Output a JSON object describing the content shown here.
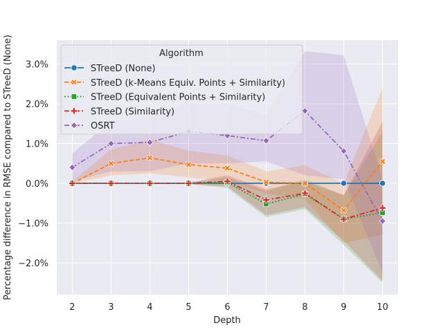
{
  "chart_data": {
    "type": "line",
    "xlabel": "Depth",
    "ylabel": "Percentage difference in RMSE compared to STreeD (None)",
    "x": [
      2,
      3,
      4,
      5,
      6,
      7,
      8,
      9,
      10
    ],
    "xlim": [
      1.6,
      10.4
    ],
    "ylim": [
      -2.8,
      3.6
    ],
    "yticks": [
      -2.0,
      -1.0,
      0.0,
      1.0,
      2.0,
      3.0
    ],
    "ytick_labels": [
      "−2.0%",
      "−1.0%",
      "0.0%",
      "1.0%",
      "2.0%",
      "3.0%"
    ],
    "xtick_labels": [
      "2",
      "3",
      "4",
      "5",
      "6",
      "7",
      "8",
      "9",
      "10"
    ],
    "grid": true,
    "legend_title": "Algorithm",
    "legend_position": "upper-left",
    "series": [
      {
        "name": "STreeD (None)",
        "color": "#1f77b4",
        "marker": "circle",
        "dash": "solid",
        "values": [
          0,
          0,
          0,
          0,
          0,
          0,
          0,
          0,
          0
        ],
        "lower": [
          0,
          0,
          0,
          0,
          0,
          0,
          0,
          0,
          0
        ],
        "upper": [
          0,
          0,
          0,
          0,
          0,
          0,
          0,
          0,
          0
        ]
      },
      {
        "name": "STreeD (k-Means Equiv. Points + Similarity)",
        "color": "#ff7f0e",
        "marker": "x",
        "dash": "dashed",
        "values": [
          0.0,
          0.5,
          0.64,
          0.47,
          0.38,
          0.03,
          0.0,
          -0.68,
          0.55
        ],
        "lower": [
          0.0,
          0.2,
          0.25,
          0.15,
          0.05,
          -0.25,
          -0.4,
          -1.5,
          -1.3
        ],
        "upper": [
          0.05,
          0.85,
          1.1,
          0.82,
          0.7,
          0.3,
          0.45,
          0.0,
          2.4
        ]
      },
      {
        "name": "STreeD (Equivalent Points + Similarity)",
        "color": "#2ca02c",
        "marker": "square",
        "dash": "dotted",
        "values": [
          0.0,
          0.0,
          0.0,
          0.0,
          0.02,
          -0.52,
          -0.27,
          -0.9,
          -0.74
        ],
        "lower": [
          0.0,
          0.0,
          0.0,
          -0.02,
          -0.12,
          -0.85,
          -0.65,
          -1.55,
          -2.5
        ],
        "upper": [
          0.0,
          0.0,
          0.0,
          0.02,
          0.15,
          -0.2,
          0.1,
          -0.3,
          1.3
        ]
      },
      {
        "name": "STreeD (Similarity)",
        "color": "#d62728",
        "marker": "plus",
        "dash": "dashdot",
        "values": [
          0.0,
          0.0,
          0.0,
          0.0,
          0.05,
          -0.42,
          -0.25,
          -0.9,
          -0.62
        ],
        "lower": [
          0.0,
          0.0,
          0.0,
          -0.02,
          -0.08,
          -0.8,
          -0.6,
          -1.45,
          -2.45
        ],
        "upper": [
          0.0,
          0.0,
          0.0,
          0.02,
          0.2,
          -0.15,
          0.05,
          -0.3,
          1.55
        ]
      },
      {
        "name": "OSRT",
        "color": "#9467bd",
        "marker": "diamond",
        "dash": "dashdot",
        "values": [
          0.4,
          1.0,
          1.03,
          1.3,
          1.2,
          1.07,
          1.82,
          0.81,
          -0.95
        ],
        "lower": [
          0.05,
          0.3,
          0.3,
          0.5,
          0.5,
          0.55,
          0.2,
          0.1,
          -2.25
        ],
        "upper": [
          0.75,
          1.55,
          1.65,
          2.0,
          2.0,
          1.7,
          3.32,
          3.22,
          0.1
        ]
      }
    ]
  }
}
